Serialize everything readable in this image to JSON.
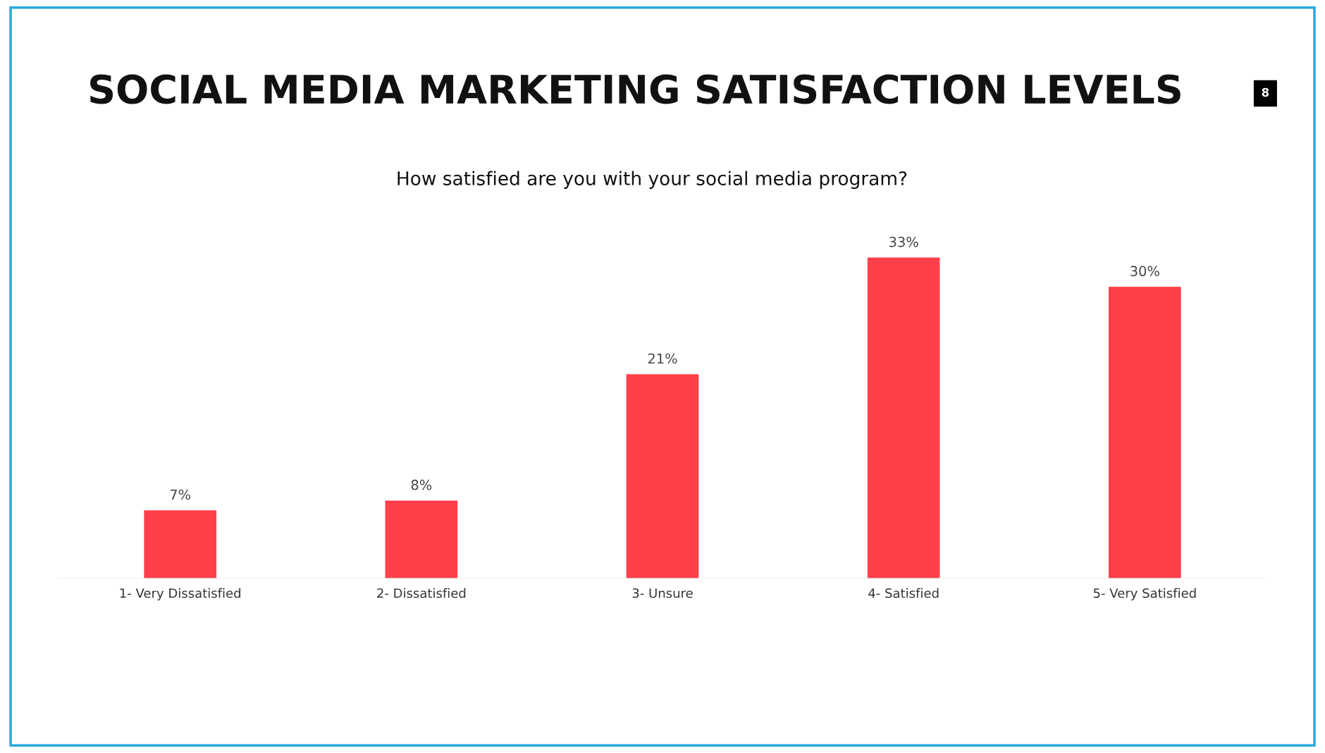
{
  "chart_data": {
    "type": "bar",
    "title": "SOCIAL MEDIA MARKETING SATISFACTION LEVELS",
    "subtitle": "How satisfied are you with your social media program?",
    "categories": [
      "1- Very Dissatisfied",
      "2- Dissatisfied",
      "3- Unsure",
      "4- Satisfied",
      "5- Very Satisfied"
    ],
    "values": [
      7,
      8,
      21,
      33,
      30
    ],
    "value_labels": [
      "7%",
      "8%",
      "21%",
      "33%",
      "30%"
    ],
    "color": "#ff404a",
    "annotations": [
      "8"
    ],
    "grid": false,
    "legend": false
  }
}
